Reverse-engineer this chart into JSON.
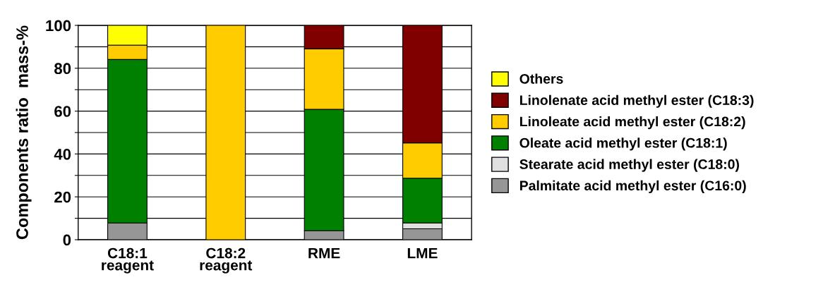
{
  "chart_data": {
    "type": "bar",
    "stacked": true,
    "categories": [
      "C18:1\nreagent",
      "C18:2\nreagent",
      "RME",
      "LME"
    ],
    "ylabel": "Components ratio  mass-%",
    "ylim": [
      0,
      100
    ],
    "yticks": [
      0,
      {
        "value": 10,
        "label": null
      },
      20,
      {
        "value": 30,
        "label": null
      },
      40,
      {
        "value": 50,
        "label": null
      },
      60,
      {
        "value": 70,
        "label": null
      },
      80,
      {
        "value": 90,
        "label": null
      },
      100
    ],
    "grid": "y",
    "legend": "right",
    "series": [
      {
        "name": "Palmitate acid methyl ester (C16:0)",
        "color": "#969696",
        "values": [
          7.8,
          null,
          4.2,
          5.1
        ]
      },
      {
        "name": "Stearate acid methyl ester (C18:0)",
        "color": "#e0e0e0",
        "values": [
          null,
          null,
          null,
          2.7
        ]
      },
      {
        "name": "Oleate acid methyl ester (C18:1)",
        "color": "#008000",
        "values": [
          76.3,
          null,
          56.6,
          20.9
        ]
      },
      {
        "name": "Linoleate acid methyl ester (C18:2)",
        "color": "#ffcc00",
        "values": [
          6.7,
          100,
          28.3,
          16.5
        ]
      },
      {
        "name": "Linolenate acid methyl ester (C18:3)",
        "color": "#800000",
        "values": [
          null,
          null,
          10.9,
          54.8
        ]
      },
      {
        "name": "Others",
        "color": "#ffff00",
        "values": [
          9.2,
          null,
          null,
          null
        ]
      }
    ]
  }
}
